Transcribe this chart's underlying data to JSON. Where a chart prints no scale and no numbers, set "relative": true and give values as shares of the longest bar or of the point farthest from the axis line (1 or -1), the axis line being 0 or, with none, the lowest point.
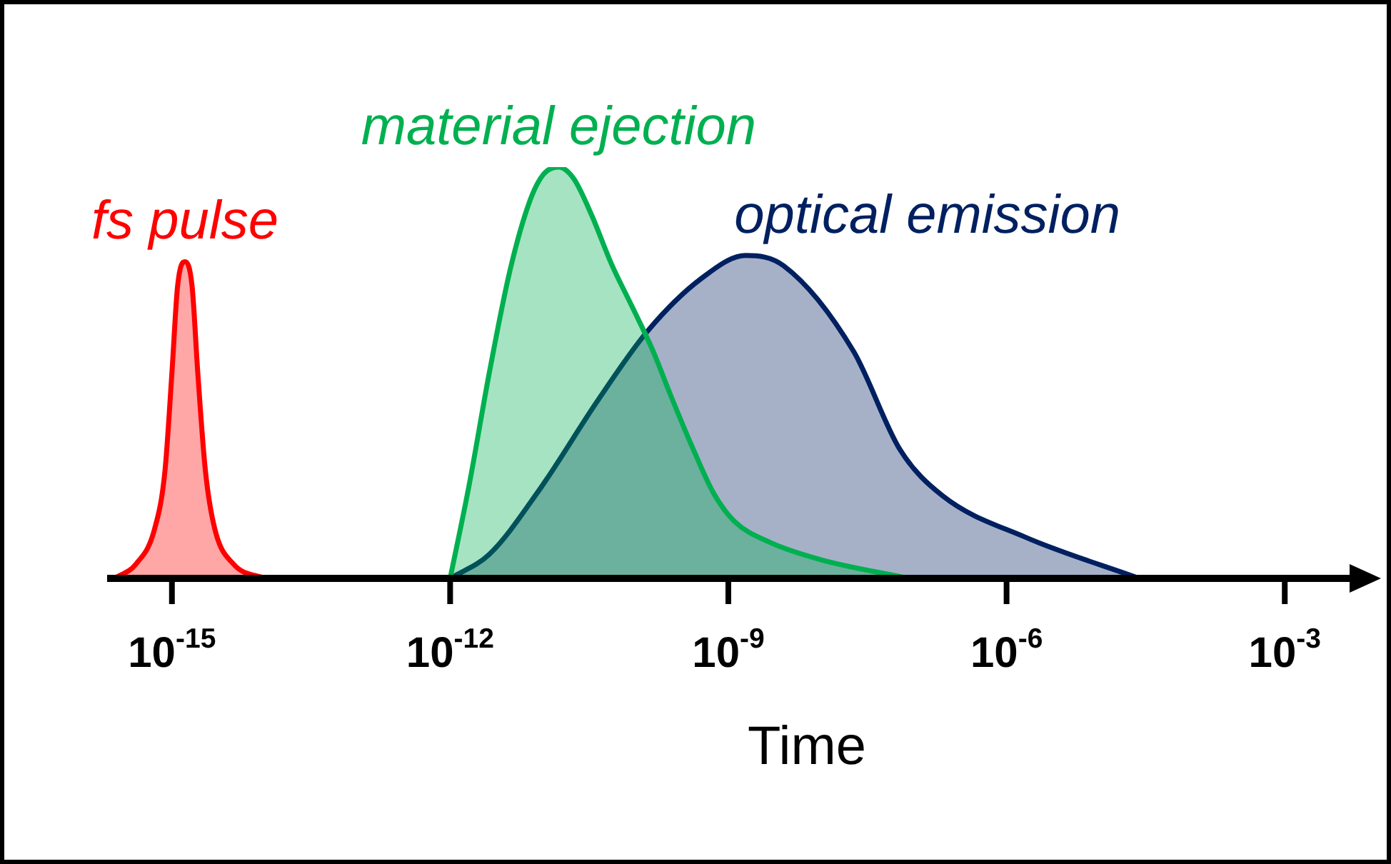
{
  "chart_data": {
    "type": "area",
    "xlabel": "Time",
    "log": "x",
    "relative": true,
    "legend": false,
    "xlim": [
      2e-16,
      0.005
    ],
    "xticks": [
      {
        "value": 1e-15,
        "label": "10$^{-15}$"
      },
      {
        "value": 1e-12,
        "label": "10$^{-12}$"
      },
      {
        "value": 1e-09,
        "label": "10$^{-9}$"
      },
      {
        "value": 1e-06,
        "label": "10$^{-6}$"
      },
      {
        "value": 0.001,
        "label": "10$^{-3}$"
      }
    ],
    "series": [
      {
        "name": "fs pulse",
        "color": "#ff0000",
        "x": [
          2.4e-16,
          4.1e-16,
          6.5e-16,
          8.4e-16,
          1e-15,
          1.15e-15,
          1.38e-15,
          1.65e-15,
          1.9e-15,
          2.3e-15,
          2.9e-15,
          4.6e-15,
          1e-14
        ],
        "values": [
          0,
          0.035,
          0.12,
          0.26,
          0.5,
          0.71,
          0.77,
          0.71,
          0.5,
          0.26,
          0.12,
          0.035,
          0
        ]
      },
      {
        "name": "material ejection",
        "color": "#00b050",
        "x": [
          1e-12,
          1.6e-12,
          2.66e-12,
          4.4e-12,
          7.3e-12,
          1.02e-11,
          1.48e-11,
          2.15e-11,
          3.33e-11,
          5.5e-11,
          9.2e-11,
          1.52e-10,
          2.5e-10,
          4.2e-10,
          6.9e-10,
          1.16e-09,
          2.85e-09,
          1.01e-08,
          8.9e-08
        ],
        "values": [
          0,
          0.226,
          0.503,
          0.747,
          0.92,
          0.983,
          1,
          0.972,
          0.885,
          0.764,
          0.66,
          0.556,
          0.434,
          0.313,
          0.208,
          0.139,
          0.087,
          0.045,
          0
        ]
      },
      {
        "name": "optical emission",
        "color": "#002060",
        "x": [
          1e-12,
          2.66e-12,
          8.95e-12,
          3.95e-11,
          1.33e-10,
          5.1e-10,
          1.54e-09,
          3.95e-09,
          2.24e-08,
          7.1e-08,
          2.04e-07,
          1.6e-06,
          2.69e-05
        ],
        "values": [
          0,
          0.059,
          0.212,
          0.434,
          0.6,
          0.729,
          0.785,
          0.76,
          0.552,
          0.313,
          0.201,
          0.1,
          0
        ]
      }
    ]
  }
}
